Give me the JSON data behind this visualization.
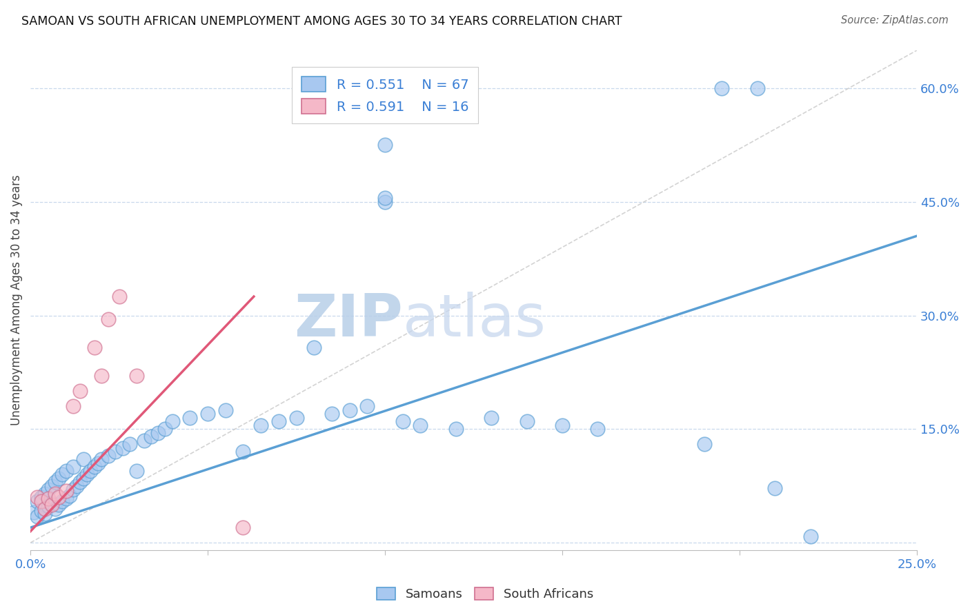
{
  "title": "SAMOAN VS SOUTH AFRICAN UNEMPLOYMENT AMONG AGES 30 TO 34 YEARS CORRELATION CHART",
  "source": "Source: ZipAtlas.com",
  "ylabel": "Unemployment Among Ages 30 to 34 years",
  "xlim": [
    0.0,
    0.25
  ],
  "ylim": [
    -0.01,
    0.65
  ],
  "legend_r1": "R = 0.551",
  "legend_n1": "N = 67",
  "legend_r2": "R = 0.591",
  "legend_n2": "N = 16",
  "color_samoan_fill": "#a8c8f0",
  "color_samoan_edge": "#5a9fd4",
  "color_sa_fill": "#f5b8c8",
  "color_sa_edge": "#d07090",
  "color_line_samoan": "#5a9fd4",
  "color_line_sa": "#e05878",
  "color_diagonal": "#c8c8c8",
  "watermark_color": "#dce8f5",
  "background_color": "#ffffff",
  "blue_line": [
    [
      0.0,
      0.02
    ],
    [
      0.25,
      0.405
    ]
  ],
  "pink_line": [
    [
      0.0,
      0.015
    ],
    [
      0.063,
      0.325
    ]
  ],
  "diag_line": [
    [
      0.0,
      0.0
    ],
    [
      0.25,
      0.65
    ]
  ],
  "samoan_x": [
    0.001,
    0.002,
    0.002,
    0.003,
    0.003,
    0.004,
    0.004,
    0.005,
    0.005,
    0.006,
    0.006,
    0.007,
    0.007,
    0.008,
    0.008,
    0.009,
    0.009,
    0.01,
    0.01,
    0.011,
    0.012,
    0.012,
    0.013,
    0.014,
    0.015,
    0.015,
    0.016,
    0.017,
    0.018,
    0.019,
    0.02,
    0.022,
    0.024,
    0.026,
    0.028,
    0.03,
    0.032,
    0.034,
    0.036,
    0.038,
    0.04,
    0.045,
    0.05,
    0.055,
    0.06,
    0.065,
    0.07,
    0.075,
    0.08,
    0.085,
    0.09,
    0.095,
    0.1,
    0.1,
    0.1,
    0.105,
    0.11,
    0.12,
    0.13,
    0.14,
    0.15,
    0.16,
    0.19,
    0.195,
    0.205,
    0.21,
    0.22
  ],
  "samoan_y": [
    0.04,
    0.035,
    0.055,
    0.042,
    0.06,
    0.038,
    0.065,
    0.048,
    0.07,
    0.052,
    0.075,
    0.045,
    0.08,
    0.05,
    0.085,
    0.055,
    0.09,
    0.058,
    0.095,
    0.062,
    0.07,
    0.1,
    0.075,
    0.08,
    0.085,
    0.11,
    0.09,
    0.095,
    0.1,
    0.105,
    0.11,
    0.115,
    0.12,
    0.125,
    0.13,
    0.095,
    0.135,
    0.14,
    0.145,
    0.15,
    0.16,
    0.165,
    0.17,
    0.175,
    0.12,
    0.155,
    0.16,
    0.165,
    0.258,
    0.17,
    0.175,
    0.18,
    0.525,
    0.45,
    0.455,
    0.16,
    0.155,
    0.15,
    0.165,
    0.16,
    0.155,
    0.15,
    0.13,
    0.6,
    0.6,
    0.072,
    0.008
  ],
  "sa_x": [
    0.002,
    0.003,
    0.004,
    0.005,
    0.006,
    0.007,
    0.008,
    0.01,
    0.012,
    0.014,
    0.018,
    0.02,
    0.022,
    0.025,
    0.03,
    0.06
  ],
  "sa_y": [
    0.06,
    0.055,
    0.045,
    0.058,
    0.05,
    0.065,
    0.06,
    0.068,
    0.18,
    0.2,
    0.258,
    0.22,
    0.295,
    0.325,
    0.22,
    0.02
  ]
}
